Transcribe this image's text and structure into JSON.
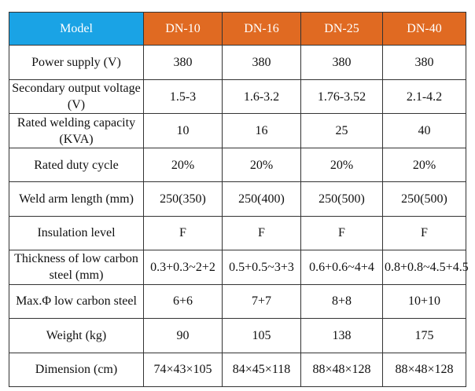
{
  "table": {
    "header": {
      "label": "Model",
      "models": [
        "DN-10",
        "DN-16",
        "DN-25",
        "DN-40"
      ]
    },
    "rows": [
      {
        "label": "Power supply (V)",
        "values": [
          "380",
          "380",
          "380",
          "380"
        ]
      },
      {
        "label": "Secondary output voltage (V)",
        "values": [
          "1.5-3",
          "1.6-3.2",
          "1.76-3.52",
          "2.1-4.2"
        ]
      },
      {
        "label": "Rated welding capacity (KVA)",
        "values": [
          "10",
          "16",
          "25",
          "40"
        ]
      },
      {
        "label": "Rated duty cycle",
        "values": [
          "20%",
          "20%",
          "20%",
          "20%"
        ]
      },
      {
        "label": "Weld arm length (mm)",
        "values": [
          "250(350)",
          "250(400)",
          "250(500)",
          "250(500)"
        ]
      },
      {
        "label": "Insulation level",
        "values": [
          "F",
          "F",
          "F",
          "F"
        ]
      },
      {
        "label": "Thickness of low carbon steel (mm)",
        "values": [
          "0.3+0.3~2+2",
          "0.5+0.5~3+3",
          "0.6+0.6~4+4",
          "0.8+0.8~4.5+4.5"
        ]
      },
      {
        "label": "Max.Φ low carbon steel",
        "values": [
          "6+6",
          "7+7",
          "8+8",
          "10+10"
        ]
      },
      {
        "label": "Weight (kg)",
        "values": [
          "90",
          "105",
          "138",
          "175"
        ]
      },
      {
        "label": "Dimension (cm)",
        "values": [
          "74×43×105",
          "84×45×118",
          "88×48×128",
          "88×48×128"
        ]
      }
    ],
    "colors": {
      "model_header_bg": "#1aa3e5",
      "dn_header_bg": "#e06a22",
      "header_text": "#ffffff",
      "border": "#333333"
    }
  }
}
